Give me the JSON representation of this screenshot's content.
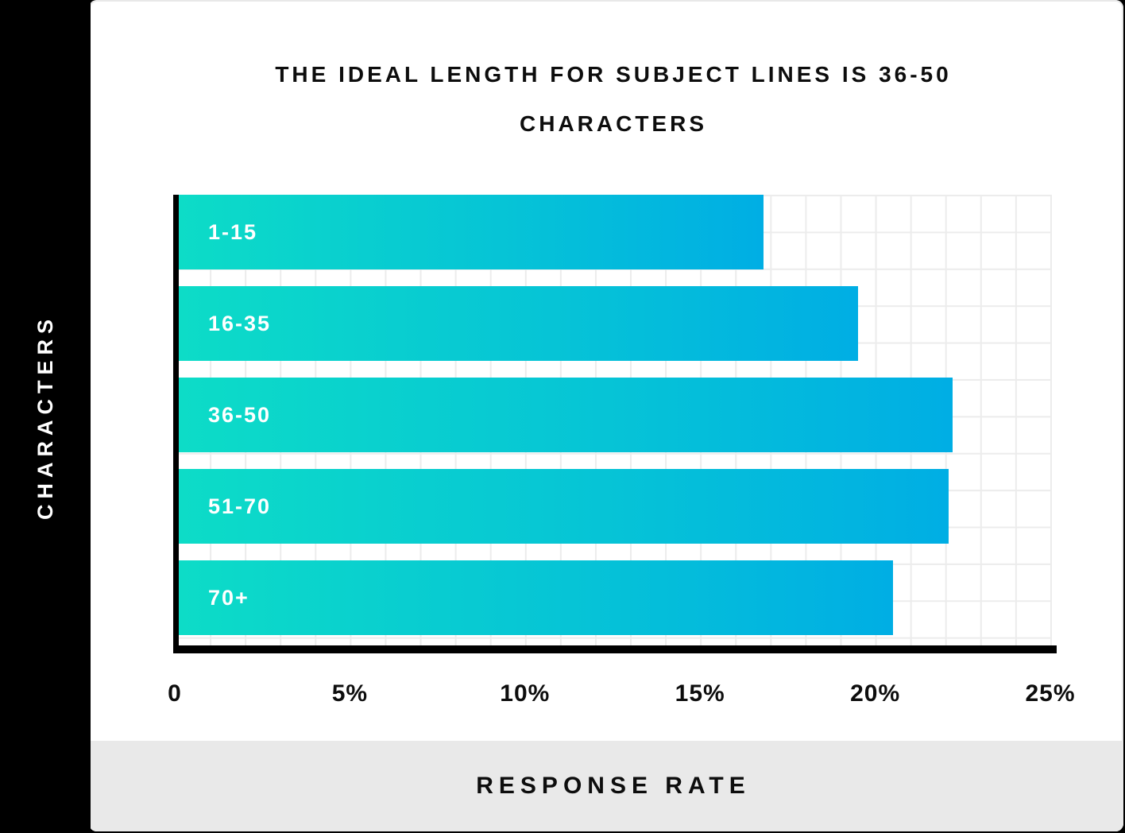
{
  "title": {
    "lines": [
      "THE IDEAL LENGTH FOR SUBJECT LINES IS 36-50",
      "CHARACTERS"
    ]
  },
  "y_axis": {
    "label": "CHARACTERS"
  },
  "x_axis": {
    "label": "RESPONSE RATE"
  },
  "colors": {
    "background": "#000000",
    "card": "#ffffff",
    "footer": "#e9e9e9",
    "grid": "#ececec",
    "bar_gradient_start": "#0ddcc7",
    "bar_gradient_end": "#00aee4",
    "bar_label": "#ffffff"
  },
  "chart_data": {
    "type": "bar",
    "orientation": "horizontal",
    "title": "THE IDEAL LENGTH FOR SUBJECT LINES IS 36-50 CHARACTERS",
    "categories": [
      "1-15",
      "16-35",
      "36-50",
      "51-70",
      "70+"
    ],
    "values": [
      16.8,
      19.5,
      22.2,
      22.1,
      20.5
    ],
    "unit": "%",
    "xlabel": "RESPONSE RATE",
    "ylabel": "CHARACTERS",
    "xlim": [
      0,
      25
    ],
    "xticks": [
      0,
      5,
      10,
      15,
      20,
      25
    ],
    "xtick_labels": [
      "0",
      "5%",
      "10%",
      "15%",
      "20%",
      "25%"
    ],
    "grid": true,
    "grid_minor_step": 1,
    "legend": false
  }
}
